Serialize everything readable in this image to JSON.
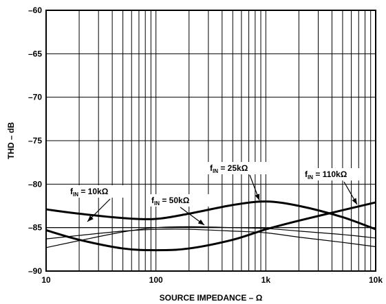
{
  "chart_data": {
    "type": "line",
    "title": "",
    "xlabel": "SOURCE IMPEDANCE – Ω",
    "ylabel": "THD – dB",
    "x_scale": "log",
    "xlim": [
      10,
      10000
    ],
    "ylim": [
      -90,
      -60
    ],
    "grid": true,
    "x_ticks": [
      {
        "value": 10,
        "label": "10"
      },
      {
        "value": 100,
        "label": "100"
      },
      {
        "value": 1000,
        "label": "1k"
      },
      {
        "value": 10000,
        "label": "10k"
      }
    ],
    "y_ticks": [
      {
        "value": -60,
        "label": "–60"
      },
      {
        "value": -65,
        "label": "–65"
      },
      {
        "value": -70,
        "label": "–70"
      },
      {
        "value": -75,
        "label": "–75"
      },
      {
        "value": -80,
        "label": "–80"
      },
      {
        "value": -85,
        "label": "–85"
      },
      {
        "value": -90,
        "label": "–90"
      }
    ],
    "series": [
      {
        "name": "fIN = 10kΩ",
        "annotation": {
          "main": "f",
          "sub": "IN",
          "rest": " = 10kΩ"
        },
        "bold": true,
        "x": [
          10,
          20,
          50,
          100,
          200,
          500,
          1000,
          2000,
          5000,
          10000
        ],
        "y": [
          -82.9,
          -83.4,
          -83.9,
          -84.0,
          -83.4,
          -82.4,
          -82.0,
          -82.5,
          -83.8,
          -85.2
        ]
      },
      {
        "name": "fIN = 50kΩ",
        "annotation": {
          "main": "f",
          "sub": "IN",
          "rest": " = 50kΩ"
        },
        "bold": false,
        "x": [
          10,
          20,
          50,
          100,
          200,
          500,
          1000,
          2000,
          5000,
          10000
        ],
        "y": [
          -87.3,
          -86.5,
          -85.5,
          -85.0,
          -84.9,
          -85.0,
          -85.1,
          -85.4,
          -85.8,
          -86.2
        ]
      },
      {
        "name": "fIN = 25kΩ",
        "annotation": {
          "main": "f",
          "sub": "IN",
          "rest": " = 25kΩ"
        },
        "bold": false,
        "x": [
          10,
          20,
          50,
          100,
          200,
          500,
          1000,
          2000,
          5000,
          10000
        ],
        "y": [
          -86.3,
          -85.9,
          -85.4,
          -85.2,
          -85.2,
          -85.4,
          -85.6,
          -86.1,
          -86.7,
          -87.2
        ]
      },
      {
        "name": "fIN = 110kΩ",
        "annotation": {
          "main": "f",
          "sub": "IN",
          "rest": " = 110kΩ"
        },
        "bold": true,
        "x": [
          10,
          20,
          50,
          100,
          200,
          500,
          1000,
          2000,
          5000,
          10000
        ],
        "y": [
          -85.3,
          -86.4,
          -87.4,
          -87.6,
          -87.4,
          -86.4,
          -85.2,
          -84.2,
          -83.0,
          -82.1
        ]
      }
    ],
    "reference_line": {
      "y": -85
    }
  }
}
